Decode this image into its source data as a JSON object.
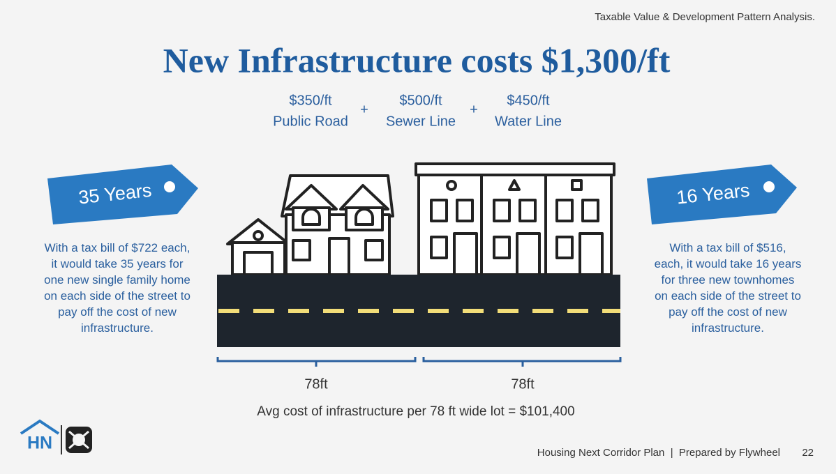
{
  "header": {
    "subtitle": "Taxable Value & Development Pattern Analysis.",
    "title": "New Infrastructure costs $1,300/ft"
  },
  "costs": [
    {
      "amount": "$350/ft",
      "label": "Public Road"
    },
    {
      "amount": "$500/ft",
      "label": "Sewer Line"
    },
    {
      "amount": "$450/ft",
      "label": "Water Line"
    }
  ],
  "operators": [
    "+",
    "+"
  ],
  "left": {
    "tag": "35 Years",
    "text": "With a tax bill of $722 each, it would take 35 years for one new single family home on each side of the street to pay off the cost of new infrastructure."
  },
  "right": {
    "tag": "16 Years",
    "text": "With a tax bill of $516, each, it would take 16 years for three new townhomes on each side of the street to pay off the cost of new infrastructure."
  },
  "dimensions": [
    "78ft",
    "78ft"
  ],
  "summary": "Avg cost of infrastructure per 78 ft wide lot = $101,400",
  "logo": "HN",
  "footer": {
    "text": "Housing Next Corridor Plan  |  Prepared by Flywheel",
    "page": "22"
  }
}
